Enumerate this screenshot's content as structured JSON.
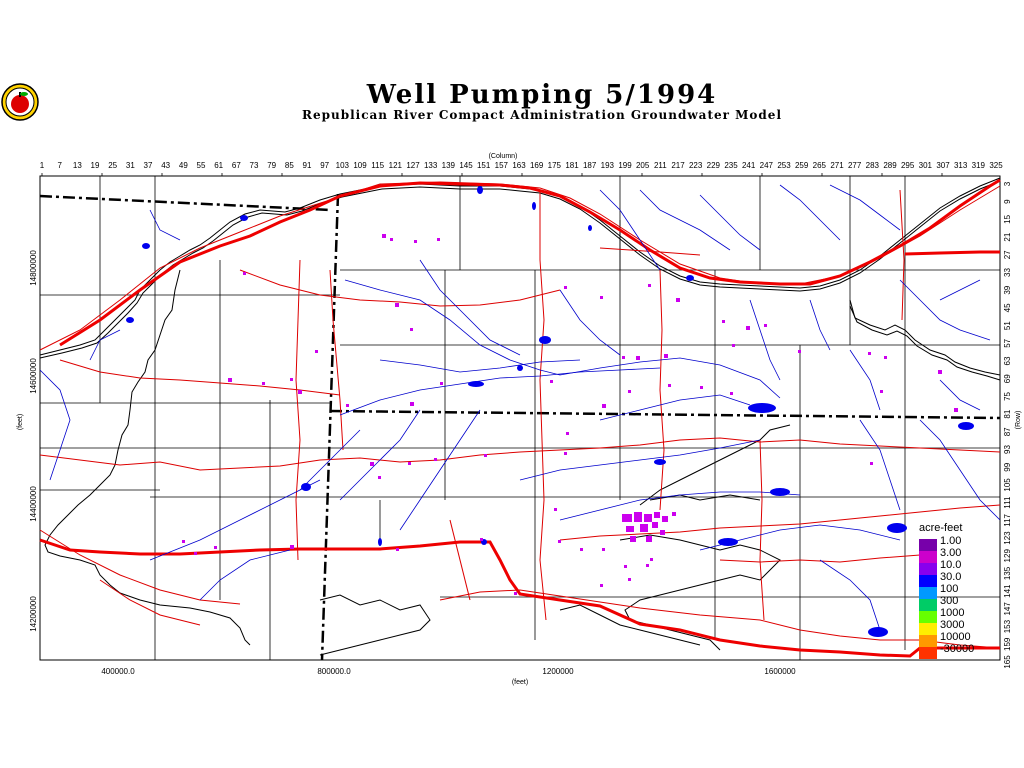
{
  "header": {
    "title": "Well Pumping 5/1994",
    "subtitle": "Republican River Compact Administration Groundwater Model"
  },
  "axes": {
    "top_label": "(Column)",
    "bottom_label": "(feet)",
    "left_label": "(feet)",
    "right_label": "(Row)",
    "columns": [
      "1",
      "7",
      "13",
      "19",
      "25",
      "31",
      "37",
      "43",
      "49",
      "55",
      "61",
      "67",
      "73",
      "79",
      "85",
      "91",
      "97",
      "103",
      "109",
      "115",
      "121",
      "127",
      "133",
      "139",
      "145",
      "151",
      "157",
      "163",
      "169",
      "175",
      "181",
      "187",
      "193",
      "199",
      "205",
      "211",
      "217",
      "223",
      "229",
      "235",
      "241",
      "247",
      "253",
      "259",
      "265",
      "271",
      "277",
      "283",
      "289",
      "295",
      "301",
      "307",
      "313",
      "319",
      "325"
    ],
    "rows": [
      "3",
      "9",
      "15",
      "21",
      "27",
      "33",
      "39",
      "45",
      "51",
      "57",
      "63",
      "69",
      "75",
      "81",
      "87",
      "93",
      "99",
      "105",
      "111",
      "117",
      "123",
      "129",
      "135",
      "141",
      "147",
      "153",
      "159",
      "165"
    ],
    "x_ticks": [
      "400000.0",
      "800000.0",
      "1200000",
      "1600000"
    ],
    "y_ticks": [
      "14800000",
      "14600000",
      "14400000",
      "14200000"
    ]
  },
  "legend": {
    "title": "acre-feet",
    "items": [
      {
        "label": "1.00",
        "color": "#7700aa"
      },
      {
        "label": "3.00",
        "color": "#cc00cc"
      },
      {
        "label": "10.0",
        "color": "#8800ee"
      },
      {
        "label": "30.0",
        "color": "#0000ff"
      },
      {
        "label": "100",
        "color": "#0099ff"
      },
      {
        "label": "300",
        "color": "#00cc66"
      },
      {
        "label": "1000",
        "color": "#66ff00"
      },
      {
        "label": "3000",
        "color": "#ffee00"
      },
      {
        "label": "10000",
        "color": "#ff9900"
      },
      {
        "label": "-30000",
        "color": "#ff3300"
      }
    ]
  },
  "colors": {
    "river": "#0000cc",
    "road": "#dd0000",
    "main_highway": "#ee0000",
    "boundary": "#000000",
    "pumping": "#cc00ee"
  }
}
